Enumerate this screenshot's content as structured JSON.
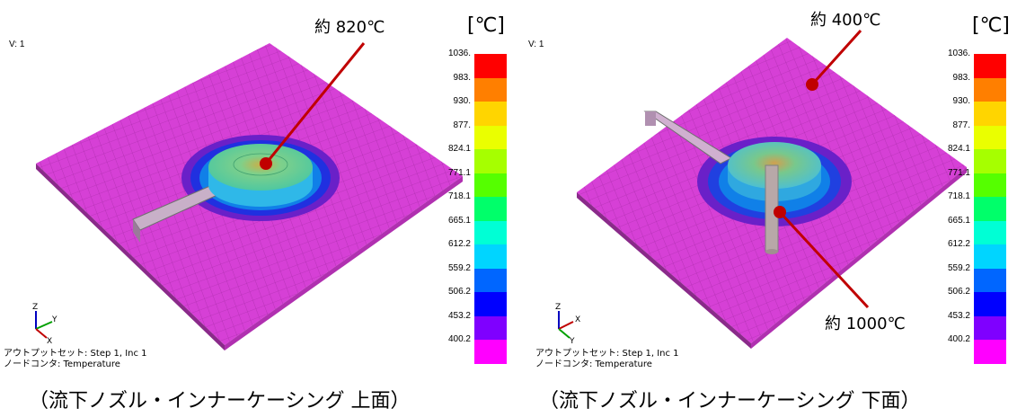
{
  "left": {
    "view_label": "V: 1",
    "unit": "[℃]",
    "annotation": "約 820℃",
    "meta_line1": "アウトプットセット: Step 1, Inc 1",
    "meta_line2": "ノードコンタ: Temperature",
    "caption": "（流下ノズル・インナーケーシング 上面）"
  },
  "right": {
    "view_label": "V: 1",
    "unit": "[℃]",
    "annotation_top": "約 400℃",
    "annotation_bottom": "約 1000℃",
    "meta_line1": "アウトプットセット: Step 1, Inc 1",
    "meta_line2": "ノードコンタ: Temperature",
    "caption": "（流下ノズル・インナーケーシング 下面）"
  },
  "axis_labels": {
    "z": "Z",
    "y": "Y",
    "x": "X"
  },
  "legend": {
    "ticks": [
      "1036.",
      "983.",
      "930.",
      "877.",
      "824.1",
      "771.1",
      "718.1",
      "665.1",
      "612.2",
      "559.2",
      "506.2",
      "453.2",
      "400.2"
    ],
    "colors": [
      "#ff0000",
      "#ff7f00",
      "#ffd500",
      "#eaff00",
      "#a6ff00",
      "#55ff00",
      "#00ff6a",
      "#00ffd5",
      "#00d5ff",
      "#0066ff",
      "#0000ff",
      "#7f00ff",
      "#ff00ff"
    ]
  },
  "colors": {
    "plate": "#d640d6",
    "plate_mesh": "#a028a0",
    "disk_top": "#5fd7b0",
    "disk_side": "#2fb8e8",
    "pointer": "#c00000"
  }
}
